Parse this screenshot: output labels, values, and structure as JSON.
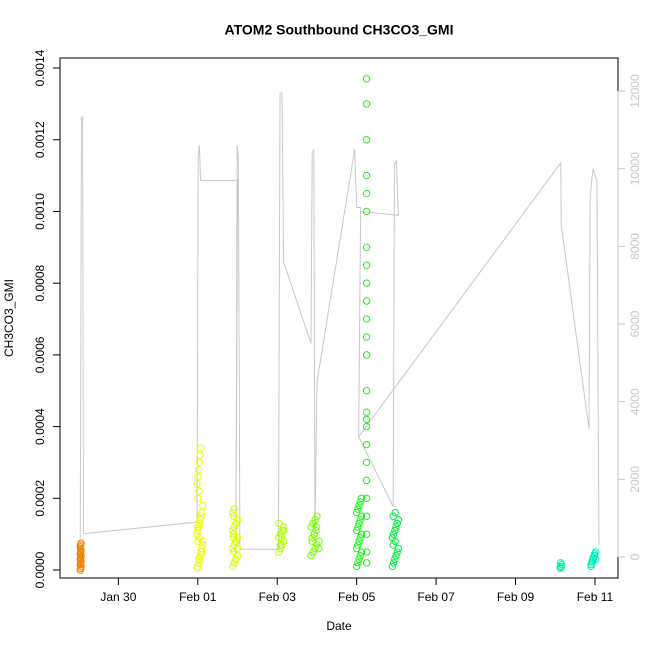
{
  "chart_data": {
    "type": "scatter",
    "title": "ATOM2 Southbound CH3CO3_GMI",
    "x_label": "Date",
    "y_label": "CH3CO3_GMI",
    "xlim": [
      -1.47,
      12.58
    ],
    "xticks": [
      {
        "value": 0,
        "label": "Jan 30"
      },
      {
        "value": 2,
        "label": "Feb 01"
      },
      {
        "value": 4,
        "label": "Feb 03"
      },
      {
        "value": 6,
        "label": "Feb 05"
      },
      {
        "value": 8,
        "label": "Feb 07"
      },
      {
        "value": 10,
        "label": "Feb 09"
      },
      {
        "value": 12,
        "label": "Feb 11"
      }
    ],
    "ylim": [
      -2.23e-05,
      0.001428
    ],
    "yticks": [
      {
        "value": 0,
        "label": "0.0000"
      },
      0.0002,
      0.0004,
      0.0006,
      0.0008,
      {
        "value": 0.001,
        "label": "0.0010"
      },
      0.0012,
      0.0014
    ],
    "y2lim": [
      -541,
      12851
    ],
    "y2ticks": [
      0,
      2000,
      4000,
      6000,
      8000,
      10000,
      12000
    ],
    "series": [
      {
        "color": "#f08000",
        "x": [
          -0.96,
          -0.95,
          -0.94,
          -0.96,
          -0.95,
          -0.94,
          -0.96,
          -0.95,
          -0.94,
          -0.96,
          -0.95,
          -0.94,
          -0.95,
          -0.96,
          -0.95,
          -0.94
        ],
        "values": [
          0,
          5e-06,
          1e-05,
          1.5e-05,
          2e-05,
          2.5e-05,
          3e-05,
          3.5e-05,
          4e-05,
          4.5e-05,
          5e-05,
          5.5e-05,
          6e-05,
          6.5e-05,
          7e-05,
          7.5e-05
        ]
      },
      {
        "color": "#e8ff00",
        "x": [
          1.98,
          2.0,
          2.02,
          2.04,
          2.06,
          2.08,
          2.1,
          2.12,
          2.0,
          2.03,
          1.98,
          2.0,
          2.02,
          2.04,
          2.06,
          2.08,
          2.1,
          2.12,
          2.0,
          2.03,
          1.98,
          2.0,
          2.02,
          2.04,
          2.06,
          2.08,
          2.1,
          2.12,
          2.0,
          2.03
        ],
        "values": [
          5e-06,
          1e-05,
          2e-05,
          3e-05,
          4e-05,
          5e-05,
          6e-05,
          7e-05,
          8e-05,
          9e-05,
          0.0001,
          0.00011,
          0.00012,
          0.00013,
          0.00014,
          0.00015,
          0.00016,
          0.00018,
          0.0002,
          0.00022,
          0.00024,
          0.00026,
          0.00028,
          0.0003,
          0.00032,
          0.00034,
          5e-05,
          8e-05,
          0.00012,
          3e-05
        ]
      },
      {
        "color": "#d8ff00",
        "x": [
          2.88,
          2.92,
          2.96,
          3.0,
          2.9,
          2.88,
          2.92,
          2.96,
          3.0,
          2.9,
          2.88,
          2.92,
          2.96,
          3.0,
          2.9,
          2.88,
          2.92,
          2.96,
          3.0,
          2.9
        ],
        "values": [
          1e-05,
          2e-05,
          3e-05,
          4e-05,
          5e-05,
          6e-05,
          7e-05,
          8e-05,
          9e-05,
          0.0001,
          0.00011,
          0.00012,
          0.00013,
          0.00014,
          0.00015,
          0.00016,
          0.00017,
          3e-05,
          6e-05,
          9e-05
        ]
      },
      {
        "color": "#b0ff00",
        "x": [
          4.04,
          4.08,
          4.12,
          4.16,
          4.04,
          4.08,
          4.12,
          4.16,
          4.04,
          4.08,
          4.12,
          4.16
        ],
        "values": [
          5e-05,
          6e-05,
          7e-05,
          8e-05,
          9e-05,
          0.0001,
          0.00011,
          0.00012,
          0.00013,
          7e-05,
          9e-05,
          0.00011
        ]
      },
      {
        "color": "#78ff00",
        "x": [
          4.85,
          4.9,
          4.95,
          5.0,
          5.05,
          4.88,
          4.93,
          4.98,
          4.85,
          4.9,
          4.95,
          5.0,
          5.05,
          4.88,
          4.93,
          4.98
        ],
        "values": [
          4e-05,
          5e-05,
          6e-05,
          7e-05,
          8e-05,
          9e-05,
          0.0001,
          0.00011,
          0.00012,
          0.00013,
          0.00014,
          0.00015,
          6e-05,
          8e-05,
          0.0001,
          0.00012
        ]
      },
      {
        "color": "#20f020",
        "x": [
          6.0,
          6.03,
          6.06,
          6.09,
          6.12,
          6.0,
          6.03,
          6.06,
          6.09,
          6.12,
          6.0,
          6.03,
          6.06,
          6.09,
          6.12,
          6.0,
          6.03,
          6.06,
          6.09,
          6.12
        ],
        "values": [
          1e-05,
          2e-05,
          3e-05,
          4e-05,
          5e-05,
          6e-05,
          7e-05,
          8e-05,
          9e-05,
          0.0001,
          0.00011,
          0.00012,
          0.00013,
          0.00014,
          0.00015,
          0.00016,
          0.00017,
          0.00018,
          0.00019,
          0.0002
        ]
      },
      {
        "color": "#20f020",
        "x": [
          6.25,
          6.25,
          6.25,
          6.25,
          6.25,
          6.25,
          6.25,
          6.25,
          6.25,
          6.25,
          6.25,
          6.25,
          6.25,
          6.25,
          6.25,
          6.25,
          6.25,
          6.25,
          6.25,
          6.25,
          6.25,
          6.25,
          6.25,
          6.25,
          6.25
        ],
        "values": [
          2e-05,
          5e-05,
          0.0001,
          0.00015,
          0.0002,
          0.00025,
          0.0003,
          0.00035,
          0.0004,
          0.00042,
          0.00044,
          0.0005,
          0.0006,
          0.00065,
          0.0007,
          0.00075,
          0.0008,
          0.00085,
          0.0009,
          0.001,
          0.00105,
          0.0011,
          0.0012,
          0.0013,
          0.00137
        ]
      },
      {
        "color": "#00f040",
        "x": [
          6.9,
          6.93,
          6.96,
          6.99,
          7.02,
          7.05,
          6.92,
          6.97,
          6.9,
          6.93,
          6.96,
          6.99,
          7.02,
          7.05,
          6.92,
          6.97
        ],
        "values": [
          1e-05,
          2e-05,
          3e-05,
          4e-05,
          5e-05,
          6e-05,
          7e-05,
          8e-05,
          9e-05,
          0.0001,
          0.00011,
          0.00012,
          0.00013,
          0.00014,
          0.00015,
          0.00016
        ]
      },
      {
        "color": "#00f0a8",
        "x": [
          11.12,
          11.14,
          11.16,
          11.13,
          11.15
        ],
        "values": [
          5e-06,
          1e-05,
          1.5e-05,
          2e-05,
          8e-06
        ]
      },
      {
        "color": "#00f0b4",
        "x": [
          11.9,
          11.93,
          11.96,
          11.99,
          12.02,
          11.9,
          11.93,
          11.96,
          11.99,
          12.02
        ],
        "values": [
          1e-05,
          2e-05,
          3e-05,
          4e-05,
          5e-05,
          1.5e-05,
          2.5e-05,
          3.5e-05,
          4.5e-05,
          3e-05
        ]
      },
      {
        "color": "#c8c8c8",
        "axis": "y2",
        "style": "line",
        "x": [
          -0.96,
          -0.93,
          -0.9,
          -0.88,
          1.98,
          2.01,
          2.04,
          2.07,
          3.0,
          2.96,
          2.99,
          3.02,
          3.06,
          4.03,
          4.07,
          4.12,
          4.16,
          4.85,
          4.88,
          4.92,
          4.95,
          5.0,
          5.95,
          6.0,
          6.1,
          6.05,
          6.92,
          6.95,
          7.0,
          7.05,
          6.1,
          6.05,
          11.14,
          11.15,
          11.85,
          11.88,
          11.95,
          12.05,
          12.1
        ],
        "values": [
          500,
          11300,
          11330,
          600,
          900,
          10300,
          10600,
          9700,
          9700,
          600,
          10600,
          10300,
          200,
          200,
          11950,
          11950,
          7600,
          5500,
          10400,
          10500,
          600,
          4500,
          10500,
          9000,
          9000,
          3100,
          1300,
          10100,
          10200,
          8800,
          8900,
          3100,
          10150,
          8550,
          3300,
          9300,
          10000,
          9700,
          300
        ]
      }
    ]
  }
}
